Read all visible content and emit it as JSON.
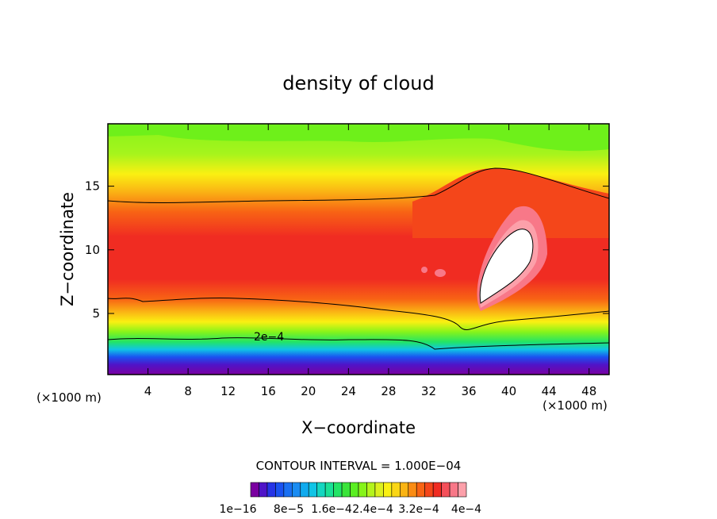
{
  "chart_data": {
    "type": "heatmap",
    "title": "density of cloud",
    "xlabel": "X−coordinate",
    "ylabel": "Z−coordinate",
    "x_unit": "(×1000 m)",
    "x_unit_right": "(×1000 m)",
    "xlim": [
      0,
      50
    ],
    "ylim": [
      0.2,
      19.9
    ],
    "x_ticks": [
      4,
      8,
      12,
      16,
      20,
      24,
      28,
      32,
      36,
      40,
      44,
      48
    ],
    "y_ticks": [
      5,
      10,
      15
    ],
    "contour_label": "2e−4",
    "contour_interval_text": "CONTOUR INTERVAL = 1.000E−04",
    "colorbar_labels": [
      "1e−16",
      "8e−5",
      "1.6e−4",
      "2.4e−4",
      "3.2e−4",
      "4e−4"
    ],
    "colors": [
      "#7a00a0",
      "#4f14c8",
      "#2634e6",
      "#1a52f0",
      "#1a70f2",
      "#1a8cf2",
      "#10aaee",
      "#10c4e6",
      "#14d6c0",
      "#1ae096",
      "#22e466",
      "#3ae43a",
      "#5aee22",
      "#86f41a",
      "#b4f41c",
      "#dcf01e",
      "#faf012",
      "#fad616",
      "#fab414",
      "#fa8c14",
      "#f86414",
      "#f4461a",
      "#f02c22",
      "#f4505a",
      "#f87888",
      "#fca0aa"
    ],
    "white_region_color": "#ffffff"
  }
}
